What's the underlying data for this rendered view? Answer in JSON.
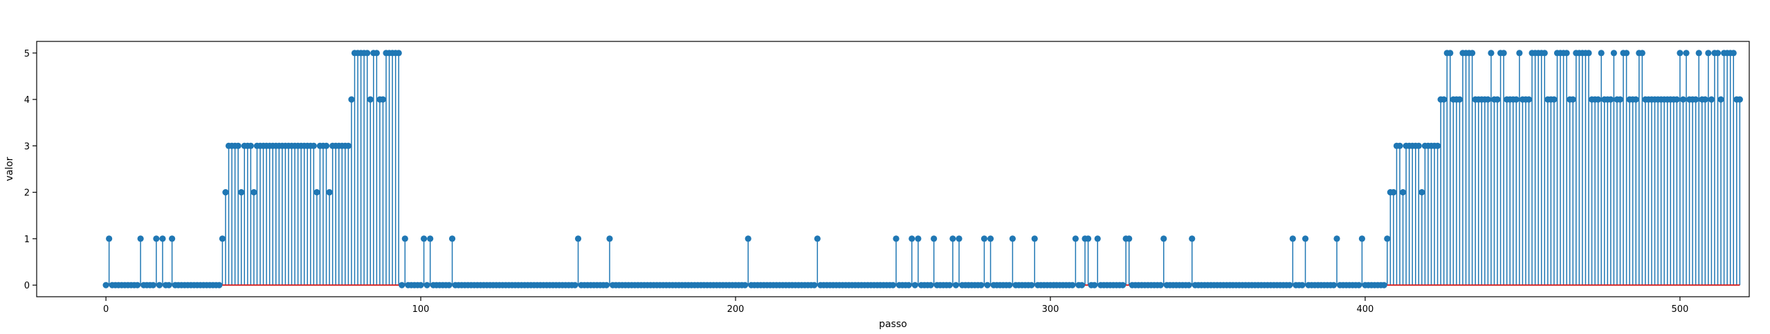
{
  "chart_data": {
    "type": "stem",
    "title": "",
    "xlabel": "passo",
    "ylabel": "valor",
    "xlim": [
      -22,
      522
    ],
    "ylim": [
      -0.25,
      5.25
    ],
    "xticks": [
      0,
      100,
      200,
      300,
      400,
      500
    ],
    "yticks": [
      0,
      1,
      2,
      3,
      4,
      5
    ],
    "grid": false,
    "baseline": 0,
    "colors": {
      "stem": "#1f77b4",
      "marker": "#1f77b4",
      "baseline": "#d62728"
    },
    "x_start": 0,
    "values": [
      0,
      1,
      0,
      0,
      0,
      0,
      0,
      0,
      0,
      0,
      0,
      1,
      0,
      0,
      0,
      0,
      1,
      0,
      1,
      0,
      0,
      1,
      0,
      0,
      0,
      0,
      0,
      0,
      0,
      0,
      0,
      0,
      0,
      0,
      0,
      0,
      0,
      1,
      2,
      3,
      3,
      3,
      3,
      2,
      3,
      3,
      3,
      2,
      3,
      3,
      3,
      3,
      3,
      3,
      3,
      3,
      3,
      3,
      3,
      3,
      3,
      3,
      3,
      3,
      3,
      3,
      3,
      2,
      3,
      3,
      3,
      2,
      3,
      3,
      3,
      3,
      3,
      3,
      4,
      5,
      5,
      5,
      5,
      5,
      4,
      5,
      5,
      4,
      4,
      5,
      5,
      5,
      5,
      5,
      0,
      1,
      0,
      0,
      0,
      0,
      0,
      1,
      0,
      1,
      0,
      0,
      0,
      0,
      0,
      0,
      1,
      0,
      0,
      0,
      0,
      0,
      0,
      0,
      0,
      0,
      0,
      0,
      0,
      0,
      0,
      0,
      0,
      0,
      0,
      0,
      0,
      0,
      0,
      0,
      0,
      0,
      0,
      0,
      0,
      0,
      0,
      0,
      0,
      0,
      0,
      0,
      0,
      0,
      0,
      0,
      1,
      0,
      0,
      0,
      0,
      0,
      0,
      0,
      0,
      0,
      1,
      0,
      0,
      0,
      0,
      0,
      0,
      0,
      0,
      0,
      0,
      0,
      0,
      0,
      0,
      0,
      0,
      0,
      0,
      0,
      0,
      0,
      0,
      0,
      0,
      0,
      0,
      0,
      0,
      0,
      0,
      0,
      0,
      0,
      0,
      0,
      0,
      0,
      0,
      0,
      0,
      0,
      0,
      0,
      1,
      0,
      0,
      0,
      0,
      0,
      0,
      0,
      0,
      0,
      0,
      0,
      0,
      0,
      0,
      0,
      0,
      0,
      0,
      0,
      0,
      0,
      1,
      0,
      0,
      0,
      0,
      0,
      0,
      0,
      0,
      0,
      0,
      0,
      0,
      0,
      0,
      0,
      0,
      0,
      0,
      0,
      0,
      0,
      0,
      0,
      0,
      1,
      0,
      0,
      0,
      0,
      1,
      0,
      1,
      0,
      0,
      0,
      0,
      1,
      0,
      0,
      0,
      0,
      0,
      1,
      0,
      1,
      0,
      0,
      0,
      0,
      0,
      0,
      0,
      1,
      0,
      1,
      0,
      0,
      0,
      0,
      0,
      0,
      1,
      0,
      0,
      0,
      0,
      0,
      0,
      1,
      0,
      0,
      0,
      0,
      0,
      0,
      0,
      0,
      0,
      0,
      0,
      0,
      1,
      0,
      0,
      1,
      1,
      0,
      0,
      1,
      0,
      0,
      0,
      0,
      0,
      0,
      0,
      0,
      1,
      1,
      0,
      0,
      0,
      0,
      0,
      0,
      0,
      0,
      0,
      0,
      1,
      0,
      0,
      0,
      0,
      0,
      0,
      0,
      0,
      1,
      0,
      0,
      0,
      0,
      0,
      0,
      0,
      0,
      0,
      0,
      0,
      0,
      0,
      0,
      0,
      0,
      0,
      0,
      0,
      0,
      0,
      0,
      0,
      0,
      0,
      0,
      0,
      0,
      0,
      0,
      0,
      1,
      0,
      0,
      0,
      1,
      0,
      0,
      0,
      0,
      0,
      0,
      0,
      0,
      0,
      1,
      0,
      0,
      0,
      0,
      0,
      0,
      0,
      1,
      0,
      0,
      0,
      0,
      0,
      0,
      0,
      1,
      2,
      2,
      3,
      3,
      2,
      3,
      3,
      3,
      3,
      3,
      2,
      3,
      3,
      3,
      3,
      3,
      4,
      4,
      5,
      5,
      4,
      4,
      4,
      5,
      5,
      5,
      5,
      4,
      4,
      4,
      4,
      4,
      5,
      4,
      4,
      5,
      5,
      4,
      4,
      4,
      4,
      5,
      4,
      4,
      4,
      5,
      5,
      5,
      5,
      5,
      4,
      4,
      4,
      5,
      5,
      5,
      5,
      4,
      4,
      5,
      5,
      5,
      5,
      5,
      4,
      4,
      4,
      5,
      4,
      4,
      4,
      5,
      4,
      4,
      5,
      5,
      4,
      4,
      4,
      5,
      5,
      4,
      4,
      4,
      4,
      4,
      4,
      4,
      4,
      4,
      4,
      4,
      5,
      4,
      5,
      4,
      4,
      4,
      5,
      4,
      4,
      5,
      4,
      5,
      5,
      4,
      5,
      5,
      5,
      5,
      4,
      4
    ]
  }
}
